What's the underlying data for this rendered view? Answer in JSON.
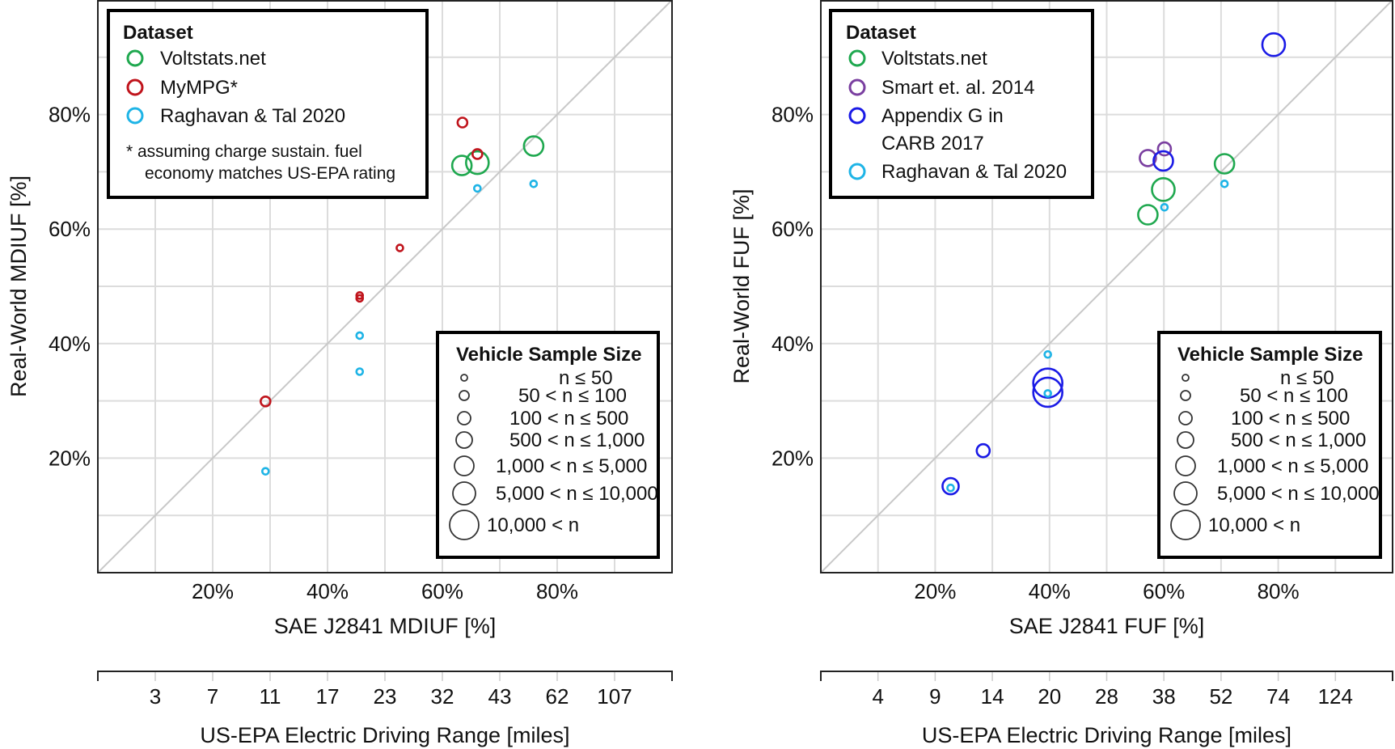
{
  "colors": {
    "Voltstats.net": "#1fa84f",
    "MyMPG*": "#c0141c",
    "Raghavan & Tal 2020": "#1eb4e6",
    "Smart et. al. 2014": "#7a3fa0",
    "Appendix G in CARB 2017": "#1a1ae6",
    "grid": "#dcdcdc",
    "diagonal": "#c8c8c8"
  },
  "sample_size_legend": {
    "title": "Vehicle Sample Size",
    "classes": [
      "n ≤ 50",
      "50 < n ≤ 100",
      "100 < n ≤ 500",
      "500 < n ≤ 1,000",
      "1,000 < n ≤ 5,000",
      "5,000 < n ≤ 10,000",
      "10,000 < n"
    ]
  },
  "chart_data": [
    {
      "type": "scatter",
      "xlabel": "SAE J2841 MDIUF [%]",
      "ylabel": "Real-World MDIUF [%]",
      "xlim": [
        0,
        100
      ],
      "ylim": [
        0,
        100
      ],
      "xticks": [
        "20%",
        "40%",
        "60%",
        "80%"
      ],
      "yticks": [
        "20%",
        "40%",
        "60%",
        "80%"
      ],
      "grid": true,
      "reference_line": "y = x",
      "secondary_xaxis": {
        "label": "US-EPA Electric Driving Range [miles]",
        "ticks": [
          "3",
          "7",
          "11",
          "17",
          "23",
          "32",
          "43",
          "62",
          "107"
        ]
      },
      "legend": {
        "title": "Dataset",
        "placement": "top-left",
        "entries": [
          "Voltstats.net",
          "MyMPG*",
          "Raghavan & Tal 2020"
        ],
        "note": [
          "* assuming charge sustain. fuel",
          "economy matches US-EPA rating"
        ]
      },
      "size_legend_placement": "bottom-right",
      "series": [
        {
          "name": "Voltstats.net",
          "points": [
            {
              "x": 63.4,
              "y": 71.1,
              "size_class": 4
            },
            {
              "x": 66.1,
              "y": 71.6,
              "size_class": 5
            },
            {
              "x": 75.9,
              "y": 74.5,
              "size_class": 4
            }
          ]
        },
        {
          "name": "MyMPG*",
          "points": [
            {
              "x": 63.5,
              "y": 78.6,
              "size_class": 1
            },
            {
              "x": 66.1,
              "y": 73.1,
              "size_class": 1
            },
            {
              "x": 52.6,
              "y": 56.7,
              "size_class": 0
            },
            {
              "x": 45.6,
              "y": 48.4,
              "size_class": 0
            },
            {
              "x": 45.6,
              "y": 47.9,
              "size_class": 0
            },
            {
              "x": 29.2,
              "y": 29.9,
              "size_class": 1
            }
          ]
        },
        {
          "name": "Raghavan & Tal 2020",
          "points": [
            {
              "x": 66.1,
              "y": 67.1,
              "size_class": 0
            },
            {
              "x": 75.9,
              "y": 67.9,
              "size_class": 0
            },
            {
              "x": 45.6,
              "y": 41.4,
              "size_class": 0
            },
            {
              "x": 45.6,
              "y": 35.1,
              "size_class": 0
            },
            {
              "x": 29.2,
              "y": 17.7,
              "size_class": 0
            }
          ]
        }
      ]
    },
    {
      "type": "scatter",
      "xlabel": "SAE J2841 FUF [%]",
      "ylabel": "Real-World FUF [%]",
      "xlim": [
        0,
        100
      ],
      "ylim": [
        0,
        100
      ],
      "xticks": [
        "20%",
        "40%",
        "60%",
        "80%"
      ],
      "yticks": [
        "20%",
        "40%",
        "60%",
        "80%"
      ],
      "grid": true,
      "reference_line": "y = x",
      "secondary_xaxis": {
        "label": "US-EPA Electric Driving Range [miles]",
        "ticks": [
          "4",
          "9",
          "14",
          "20",
          "28",
          "38",
          "52",
          "74",
          "124"
        ]
      },
      "legend": {
        "title": "Dataset",
        "placement": "top-left",
        "entries": [
          "Voltstats.net",
          "Smart et. al. 2014",
          "Appendix G in",
          "CARB 2017",
          "Raghavan & Tal 2020"
        ]
      },
      "size_legend_placement": "bottom-right",
      "series": [
        {
          "name": "Voltstats.net",
          "points": [
            {
              "x": 70.6,
              "y": 71.4,
              "size_class": 4
            },
            {
              "x": 59.9,
              "y": 66.9,
              "size_class": 5
            },
            {
              "x": 57.2,
              "y": 62.5,
              "size_class": 4
            }
          ]
        },
        {
          "name": "Smart et. al. 2014",
          "points": [
            {
              "x": 60.1,
              "y": 74.0,
              "size_class": 2
            },
            {
              "x": 57.2,
              "y": 72.4,
              "size_class": 3
            }
          ]
        },
        {
          "name": "Appendix G in CARB 2017",
          "points": [
            {
              "x": 79.2,
              "y": 92.2,
              "size_class": 5
            },
            {
              "x": 59.9,
              "y": 71.9,
              "size_class": 4
            },
            {
              "x": 39.7,
              "y": 33.1,
              "size_class": 6
            },
            {
              "x": 39.7,
              "y": 31.5,
              "size_class": 6
            },
            {
              "x": 28.4,
              "y": 21.3,
              "size_class": 2
            },
            {
              "x": 22.7,
              "y": 15.1,
              "size_class": 3
            }
          ]
        },
        {
          "name": "Raghavan & Tal 2020",
          "points": [
            {
              "x": 70.6,
              "y": 67.9,
              "size_class": 0
            },
            {
              "x": 60.1,
              "y": 63.8,
              "size_class": 0
            },
            {
              "x": 39.7,
              "y": 38.1,
              "size_class": 0
            },
            {
              "x": 39.7,
              "y": 31.3,
              "size_class": 0
            },
            {
              "x": 22.7,
              "y": 14.8,
              "size_class": 0
            }
          ]
        }
      ]
    }
  ]
}
